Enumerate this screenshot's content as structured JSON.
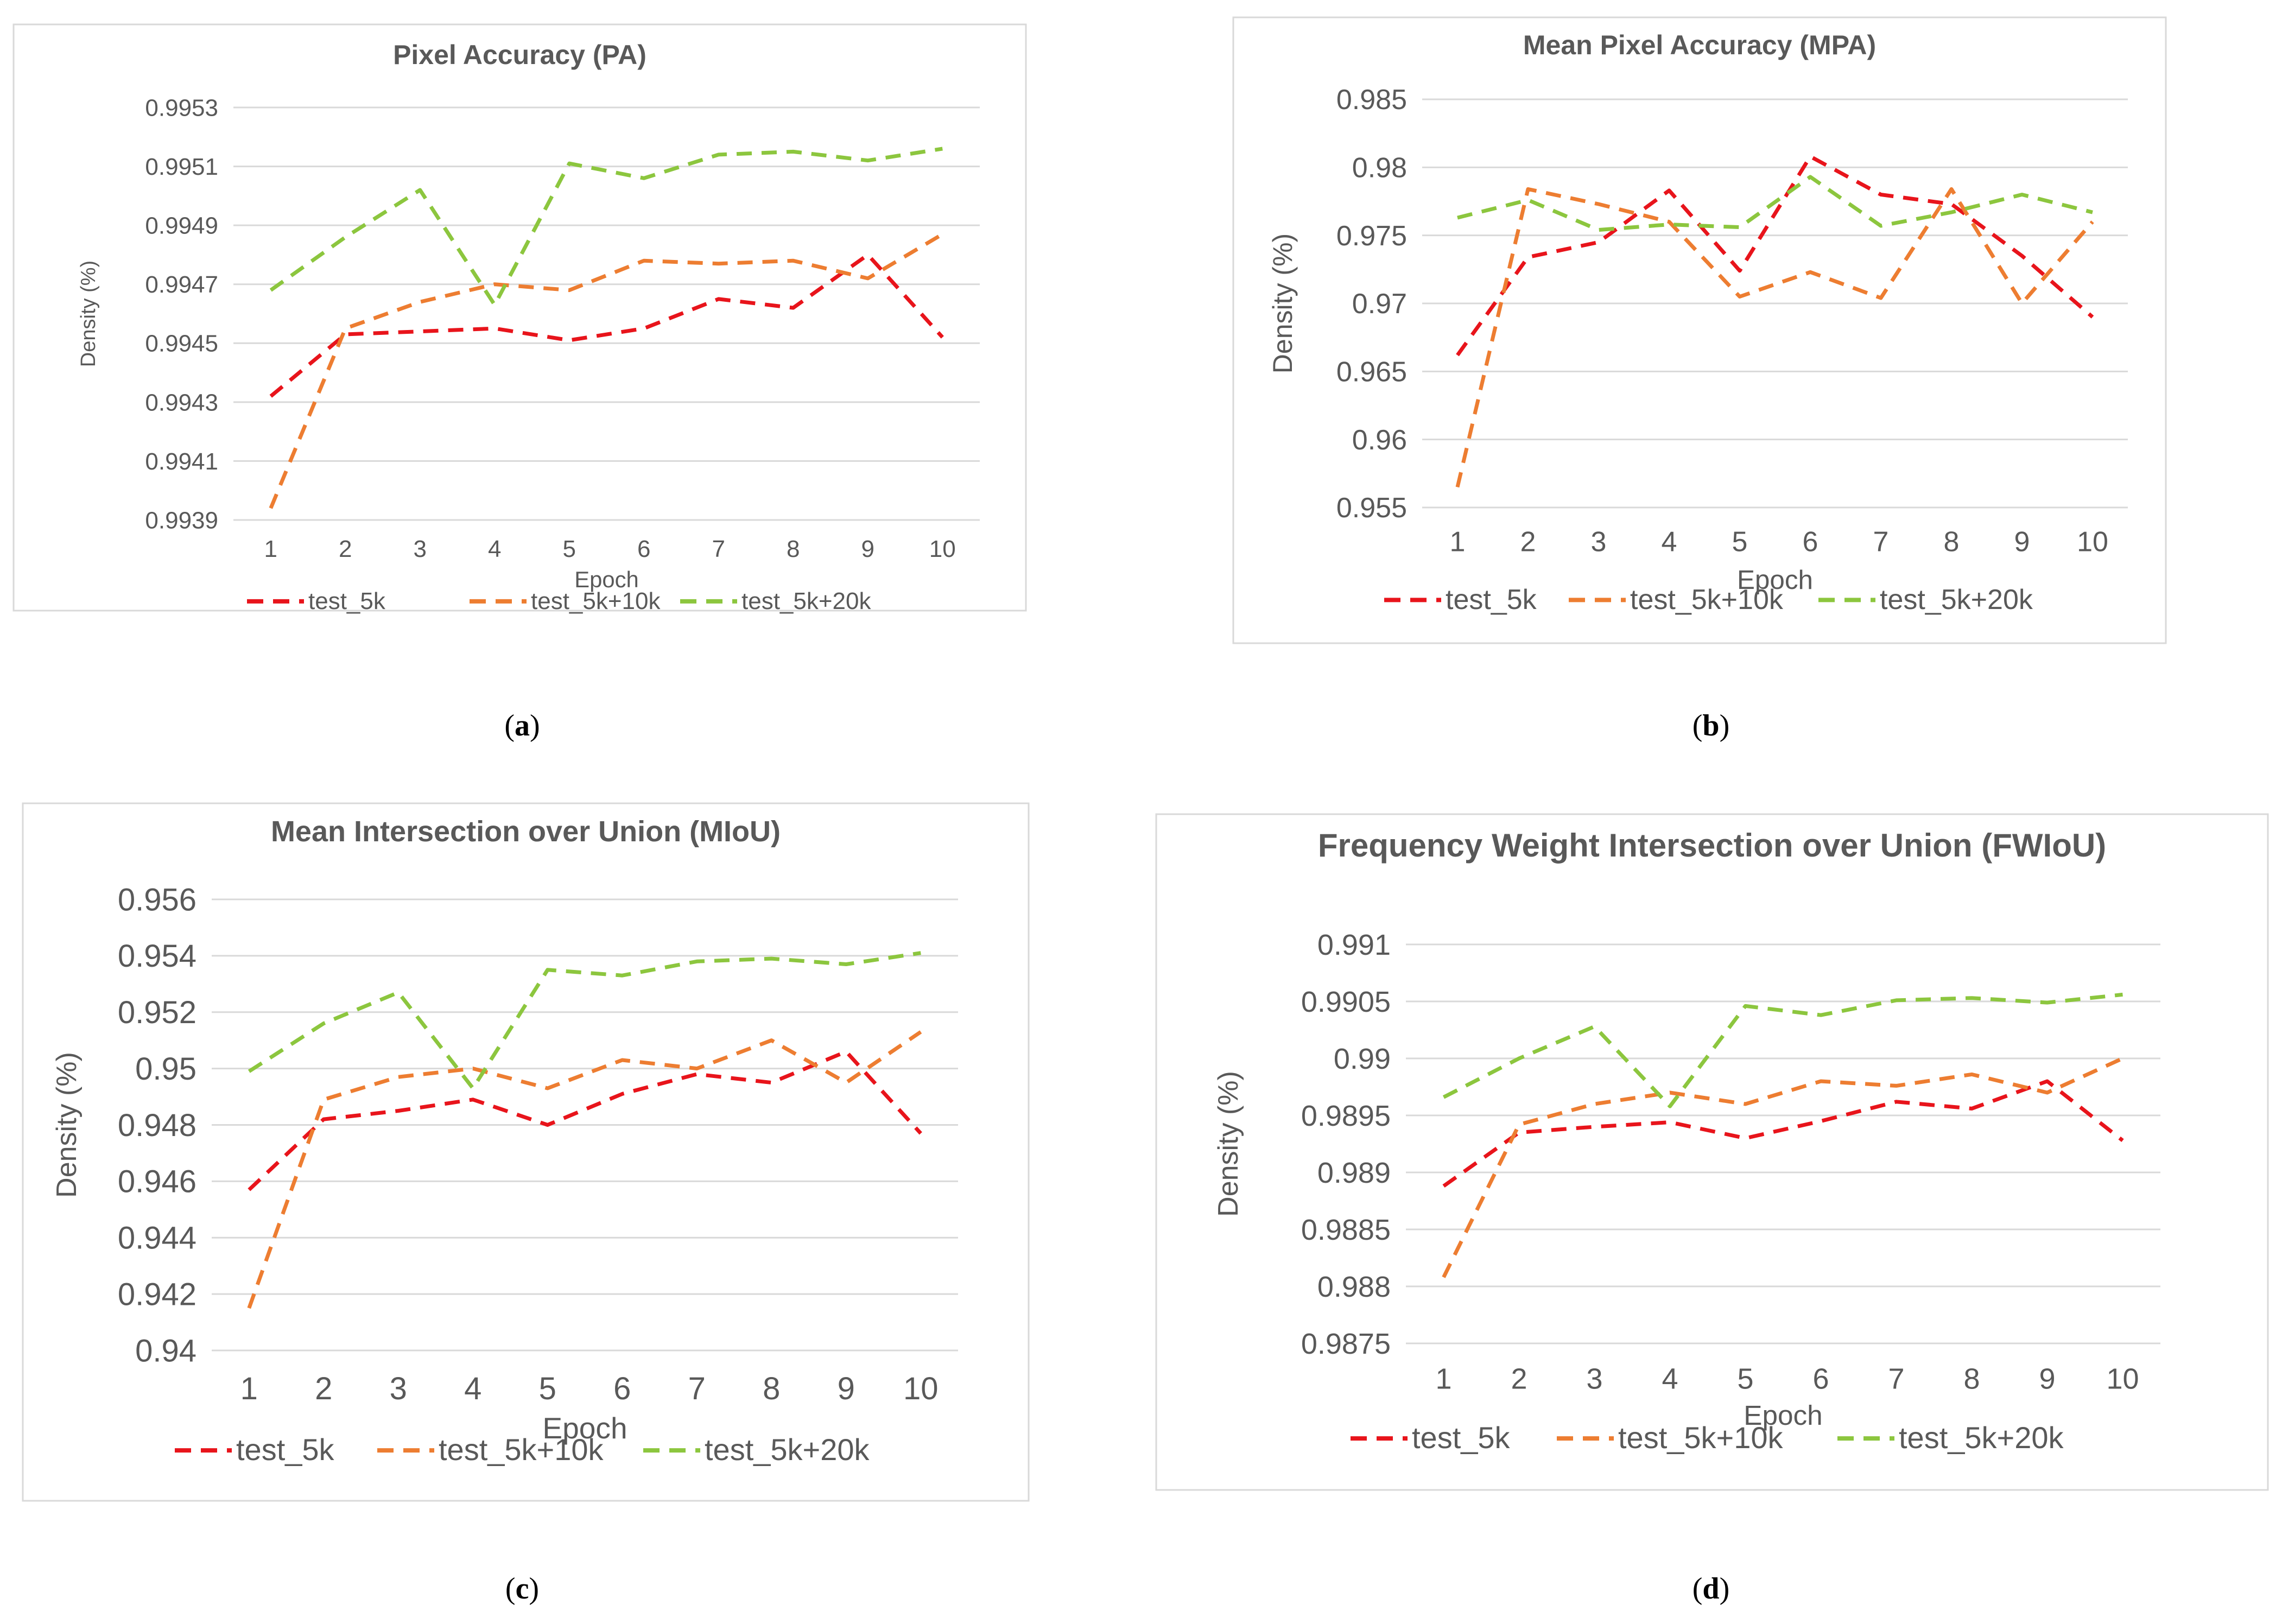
{
  "series_styles": [
    {
      "name": "test_5k",
      "color": "#E8141B"
    },
    {
      "name": "test_5k+10k",
      "color": "#ED7D31"
    },
    {
      "name": "test_5k+20k",
      "color": "#8CC63E"
    }
  ],
  "chart_data": [
    {
      "type": "line",
      "panel": "a",
      "title": "Pixel Accuracy (PA)",
      "xlabel": "Epoch",
      "ylabel": "Density (%)",
      "x": [
        1,
        2,
        3,
        4,
        5,
        6,
        7,
        8,
        9,
        10
      ],
      "ylim": [
        0.9939,
        0.9953
      ],
      "yticks": [
        "0.9939",
        "0.9941",
        "0.9943",
        "0.9945",
        "0.9947",
        "0.9949",
        "0.9951",
        "0.9953"
      ],
      "grid": true,
      "legend": "bottom",
      "series": [
        {
          "name": "test_5k",
          "values": [
            0.99432,
            0.99453,
            0.99454,
            0.99455,
            0.99451,
            0.99455,
            0.99465,
            0.99462,
            0.9948,
            0.99452
          ]
        },
        {
          "name": "test_5k+10k",
          "values": [
            0.99394,
            0.99455,
            0.99464,
            0.9947,
            0.99468,
            0.99478,
            0.99477,
            0.99478,
            0.99472,
            0.99487
          ]
        },
        {
          "name": "test_5k+20k",
          "values": [
            0.99468,
            0.99486,
            0.99502,
            0.99463,
            0.99511,
            0.99506,
            0.99514,
            0.99515,
            0.99512,
            0.99516
          ]
        }
      ]
    },
    {
      "type": "line",
      "panel": "b",
      "title": "Mean Pixel Accuracy (MPA)",
      "xlabel": "Epoch",
      "ylabel": "Density (%)",
      "x": [
        1,
        2,
        3,
        4,
        5,
        6,
        7,
        8,
        9,
        10
      ],
      "ylim": [
        0.955,
        0.985
      ],
      "yticks": [
        "0.955",
        "0.96",
        "0.965",
        "0.97",
        "0.975",
        "0.98",
        "0.985"
      ],
      "grid": true,
      "legend": "bottom",
      "series": [
        {
          "name": "test_5k",
          "values": [
            0.9662,
            0.9734,
            0.9745,
            0.9783,
            0.9724,
            0.9808,
            0.978,
            0.9773,
            0.9735,
            0.969
          ]
        },
        {
          "name": "test_5k+10k",
          "values": [
            0.9565,
            0.9784,
            0.9773,
            0.976,
            0.9705,
            0.9723,
            0.9704,
            0.9784,
            0.97,
            0.976
          ]
        },
        {
          "name": "test_5k+20k",
          "values": [
            0.9763,
            0.9776,
            0.9754,
            0.9758,
            0.9756,
            0.9793,
            0.9757,
            0.9767,
            0.978,
            0.9767
          ]
        }
      ]
    },
    {
      "type": "line",
      "panel": "c",
      "title": "Mean Intersection over Union (MIoU)",
      "xlabel": "Epoch",
      "ylabel": "Density (%)",
      "x": [
        1,
        2,
        3,
        4,
        5,
        6,
        7,
        8,
        9,
        10
      ],
      "ylim": [
        0.94,
        0.956
      ],
      "yticks": [
        "0.94",
        "0.942",
        "0.944",
        "0.946",
        "0.948",
        "0.95",
        "0.952",
        "0.954",
        "0.956"
      ],
      "grid": true,
      "legend": "bottom",
      "series": [
        {
          "name": "test_5k",
          "values": [
            0.9457,
            0.9482,
            0.9485,
            0.9489,
            0.948,
            0.9491,
            0.9498,
            0.9495,
            0.9506,
            0.9477
          ]
        },
        {
          "name": "test_5k+10k",
          "values": [
            0.9415,
            0.9489,
            0.9497,
            0.95,
            0.9493,
            0.9503,
            0.95,
            0.951,
            0.9495,
            0.9513
          ]
        },
        {
          "name": "test_5k+20k",
          "values": [
            0.9499,
            0.9516,
            0.9527,
            0.9493,
            0.9535,
            0.9533,
            0.9538,
            0.9539,
            0.9537,
            0.9541
          ]
        }
      ]
    },
    {
      "type": "line",
      "panel": "d",
      "title": "Frequency Weight Intersection over Union (FWIoU)",
      "xlabel": "Epoch",
      "ylabel": "Density (%)",
      "x": [
        1,
        2,
        3,
        4,
        5,
        6,
        7,
        8,
        9,
        10
      ],
      "ylim": [
        0.9875,
        0.991
      ],
      "yticks": [
        "0.9875",
        "0.988",
        "0.9885",
        "0.989",
        "0.9895",
        "0.99",
        "0.9905",
        "0.991"
      ],
      "grid": true,
      "legend": "bottom",
      "series": [
        {
          "name": "test_5k",
          "values": [
            0.98888,
            0.98935,
            0.9894,
            0.98944,
            0.9893,
            0.98945,
            0.98962,
            0.98956,
            0.9898,
            0.98928
          ]
        },
        {
          "name": "test_5k+10k",
          "values": [
            0.98808,
            0.98942,
            0.9896,
            0.9897,
            0.9896,
            0.9898,
            0.98976,
            0.98986,
            0.9897,
            0.99
          ]
        },
        {
          "name": "test_5k+20k",
          "values": [
            0.98966,
            0.99,
            0.99028,
            0.98958,
            0.99046,
            0.99038,
            0.99051,
            0.99053,
            0.99049,
            0.99056
          ]
        }
      ]
    }
  ],
  "captions": [
    {
      "letter": "a",
      "open": "(",
      "close": ")"
    },
    {
      "letter": "b",
      "open": "(",
      "close": ")"
    },
    {
      "letter": "c",
      "open": "(",
      "close": ")"
    },
    {
      "letter": "d",
      "open": "(",
      "close": ")"
    }
  ]
}
